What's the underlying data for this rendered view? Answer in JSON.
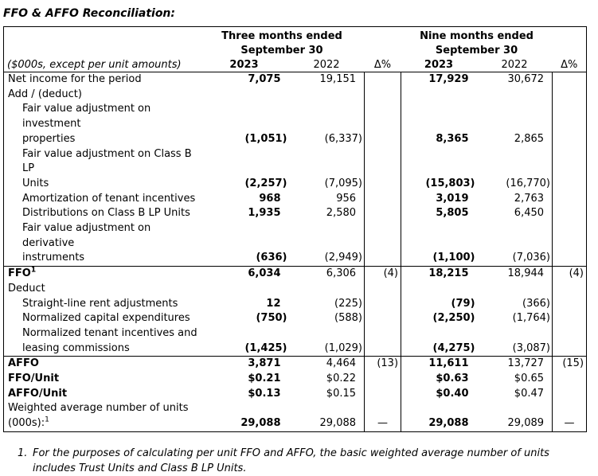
{
  "page": {
    "title": "FFO & AFFO Reconciliation:"
  },
  "table": {
    "caption": "($000s, except per unit amounts)",
    "col_groups": [
      {
        "line1": "Three months ended",
        "line2": "September 30"
      },
      {
        "line1": "Nine months ended",
        "line2": "September 30"
      }
    ],
    "col_headers": [
      {
        "label": "2023",
        "bold": true
      },
      {
        "label": "2022",
        "bold": false
      },
      {
        "label": "Δ%",
        "bold": false
      },
      {
        "label": "2023",
        "bold": true
      },
      {
        "label": "2022",
        "bold": false
      },
      {
        "label": "Δ%",
        "bold": false
      }
    ],
    "rows": [
      {
        "label": "Net income for the period",
        "values": [
          "7,075",
          "19,151",
          "",
          "17,929",
          "30,672",
          ""
        ]
      },
      {
        "label": "Add / (deduct)",
        "values": [
          "",
          "",
          "",
          "",
          "",
          ""
        ]
      },
      {
        "lines": [
          "Fair value adjustment on investment",
          "properties"
        ],
        "indent": 1,
        "values": [
          "(1,051)",
          "(6,337)",
          "",
          "8,365",
          "2,865",
          ""
        ]
      },
      {
        "lines": [
          "Fair value adjustment on Class B LP",
          "Units"
        ],
        "indent": 1,
        "values": [
          "(2,257)",
          "(7,095)",
          "",
          "(15,803)",
          "(16,770)",
          ""
        ]
      },
      {
        "label": "Amortization of tenant incentives",
        "indent": 1,
        "values": [
          "968",
          "956",
          "",
          "3,019",
          "2,763",
          ""
        ]
      },
      {
        "label": "Distributions on Class B LP Units",
        "indent": 1,
        "values": [
          "1,935",
          "2,580",
          "",
          "5,805",
          "6,450",
          ""
        ]
      },
      {
        "lines": [
          "Fair value adjustment on derivative",
          "instruments"
        ],
        "indent": 1,
        "values": [
          "(636)",
          "(2,949)",
          "",
          "(1,100)",
          "(7,036)",
          ""
        ]
      },
      {
        "label": "FFO",
        "sup": "1",
        "bold_label": true,
        "rule_above": true,
        "values": [
          "6,034",
          "6,306",
          "(4)",
          "18,215",
          "18,944",
          "(4)"
        ]
      },
      {
        "label": "Deduct",
        "values": [
          "",
          "",
          "",
          "",
          "",
          ""
        ]
      },
      {
        "label": "Straight-line rent adjustments",
        "indent": 1,
        "values": [
          "12",
          "(225)",
          "",
          "(79)",
          "(366)",
          ""
        ]
      },
      {
        "label": "Normalized capital expenditures",
        "indent": 1,
        "values": [
          "(750)",
          "(588)",
          "",
          "(2,250)",
          "(1,764)",
          ""
        ]
      },
      {
        "lines": [
          "Normalized tenant incentives and",
          "leasing commissions"
        ],
        "indent": 1,
        "values": [
          "(1,425)",
          "(1,029)",
          "",
          "(4,275)",
          "(3,087)",
          ""
        ]
      },
      {
        "label": "AFFO",
        "bold_label": true,
        "rule_above": true,
        "values": [
          "3,871",
          "4,464",
          "(13)",
          "11,611",
          "13,727",
          "(15)"
        ]
      },
      {
        "label": "FFO/Unit",
        "bold_label": true,
        "values": [
          "$0.21",
          "$0.22",
          "",
          "$0.63",
          "$0.65",
          ""
        ]
      },
      {
        "label": "AFFO/Unit",
        "bold_label": true,
        "values": [
          "$0.13",
          "$0.15",
          "",
          "$0.40",
          "$0.47",
          ""
        ]
      },
      {
        "lines": [
          "Weighted average number of units",
          "(000s):"
        ],
        "sup": "1",
        "values": [
          "29,088",
          "29,088",
          "—",
          "29,088",
          "29,089",
          "—"
        ]
      }
    ]
  },
  "footnote": {
    "number": "1.",
    "text": "For the purposes of calculating per unit FFO and AFFO, the basic weighted average number of units includes Trust Units and Class B LP Units."
  }
}
